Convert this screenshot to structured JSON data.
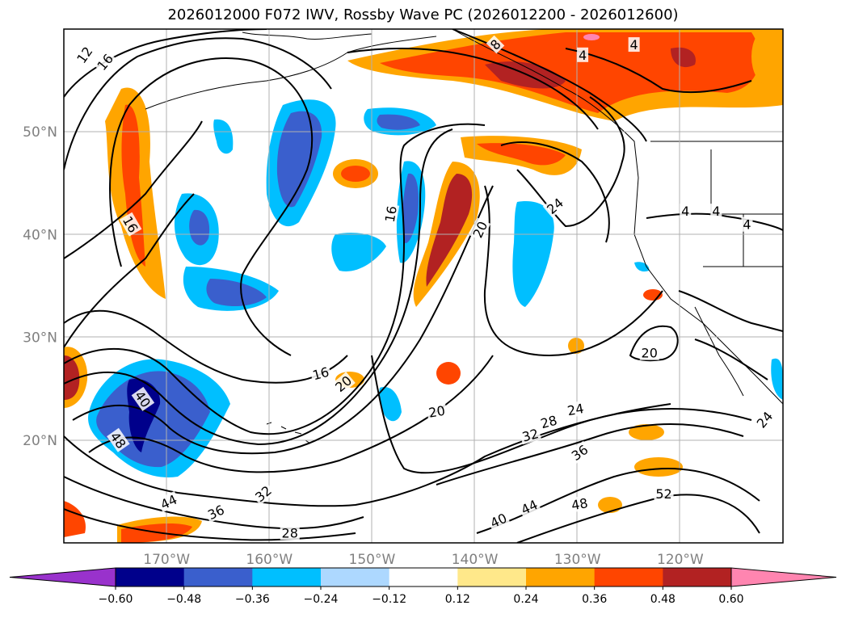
{
  "title": "2026012000 F072 IWV, Rossby Wave PC (2026012200 - 2026012600)",
  "map": {
    "lon_range": [
      -180,
      -110
    ],
    "lat_range": [
      10,
      60
    ],
    "lat_ticks": [
      {
        "value": 50,
        "label": "50°N"
      },
      {
        "value": 40,
        "label": "40°N"
      },
      {
        "value": 30,
        "label": "30°N"
      },
      {
        "value": 20,
        "label": "20°N"
      }
    ],
    "lon_ticks": [
      {
        "value": -170,
        "label": "170°W"
      },
      {
        "value": -160,
        "label": "160°W"
      },
      {
        "value": -150,
        "label": "150°W"
      },
      {
        "value": -140,
        "label": "140°W"
      },
      {
        "value": -130,
        "label": "130°W"
      },
      {
        "value": -120,
        "label": "120°W"
      }
    ],
    "grid": true,
    "contour_labels": [
      {
        "text": "12",
        "lon": -178,
        "lat": 57.5,
        "rot": -55
      },
      {
        "text": "16",
        "lon": -176,
        "lat": 56.8,
        "rot": -50
      },
      {
        "text": "16",
        "lon": -173.5,
        "lat": 41,
        "rot": 60
      },
      {
        "text": "16",
        "lon": -148.2,
        "lat": 42,
        "rot": -80
      },
      {
        "text": "16",
        "lon": -155,
        "lat": 26.5,
        "rot": -15
      },
      {
        "text": "20",
        "lon": -152.8,
        "lat": 25.5,
        "rot": -40
      },
      {
        "text": "20",
        "lon": -139.5,
        "lat": 40.5,
        "rot": -65
      },
      {
        "text": "20",
        "lon": -143.7,
        "lat": 22.8,
        "rot": -10
      },
      {
        "text": "20",
        "lon": -123,
        "lat": 28.5,
        "rot": 0
      },
      {
        "text": "24",
        "lon": -132.2,
        "lat": 42.8,
        "rot": -40
      },
      {
        "text": "24",
        "lon": -130.2,
        "lat": 23,
        "rot": -10
      },
      {
        "text": "24",
        "lon": -111.8,
        "lat": 22,
        "rot": -50
      },
      {
        "text": "28",
        "lon": -132.8,
        "lat": 21.8,
        "rot": -15
      },
      {
        "text": "28",
        "lon": -158,
        "lat": 11,
        "rot": 0
      },
      {
        "text": "32",
        "lon": -134.6,
        "lat": 20.5,
        "rot": -15
      },
      {
        "text": "32",
        "lon": -160.6,
        "lat": 14.8,
        "rot": -40
      },
      {
        "text": "36",
        "lon": -129.8,
        "lat": 18.8,
        "rot": -35
      },
      {
        "text": "36",
        "lon": -165.2,
        "lat": 13,
        "rot": -25
      },
      {
        "text": "40",
        "lon": -172.3,
        "lat": 24,
        "rot": 55
      },
      {
        "text": "40",
        "lon": -137.7,
        "lat": 12.2,
        "rot": -25
      },
      {
        "text": "44",
        "lon": -169.8,
        "lat": 14,
        "rot": -25
      },
      {
        "text": "44",
        "lon": -134.7,
        "lat": 13.5,
        "rot": -25
      },
      {
        "text": "48",
        "lon": -174.7,
        "lat": 20,
        "rot": 55
      },
      {
        "text": "48",
        "lon": -129.8,
        "lat": 13.8,
        "rot": -10
      },
      {
        "text": "52",
        "lon": -121.6,
        "lat": 14.8,
        "rot": 0
      },
      {
        "text": "4",
        "lon": -129.5,
        "lat": 57.5,
        "rot": 0
      },
      {
        "text": "4",
        "lon": -124.5,
        "lat": 58.5,
        "rot": 0
      },
      {
        "text": "4",
        "lon": -119.5,
        "lat": 42.3,
        "rot": 0
      },
      {
        "text": "4",
        "lon": -116.5,
        "lat": 42.3,
        "rot": 0
      },
      {
        "text": "4",
        "lon": -113.5,
        "lat": 41,
        "rot": 0
      },
      {
        "text": "8",
        "lon": -138,
        "lat": 58.5,
        "rot": -45
      }
    ]
  },
  "colorbar": {
    "levels": [
      -0.6,
      -0.48,
      -0.36,
      -0.24,
      -0.12,
      0.12,
      0.24,
      0.36,
      0.48,
      0.6
    ],
    "tick_labels": [
      "−0.60",
      "−0.48",
      "−0.36",
      "−0.24",
      "−0.12",
      "0.12",
      "0.24",
      "0.36",
      "0.48",
      "0.60"
    ],
    "colors": [
      "#9932cc",
      "#00008b",
      "#3a5fcd",
      "#00bfff",
      "#add8ff",
      "#ffffff",
      "#ffe88a",
      "#ffa500",
      "#ff4500",
      "#b22222",
      "#ff85b0"
    ],
    "extend": "both"
  }
}
